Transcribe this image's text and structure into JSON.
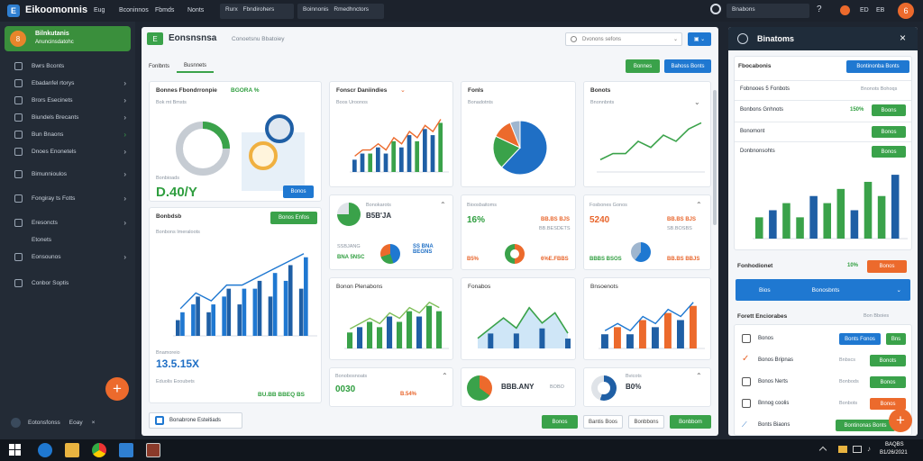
{
  "topbar": {
    "brand": "Eikoomonnis",
    "menu": [
      "Eug",
      "Bconinnos",
      "Fbmds",
      "Nonts"
    ],
    "tabs": [
      "Rurx",
      "Fbndirohers",
      "Boinnonis",
      "Rmedhnctors"
    ],
    "search_value": "Bnabons",
    "user_initial": "6"
  },
  "sidebar": {
    "header_title": "Bilnkutanis",
    "header_sub": "Anuncinsdatohc",
    "items": [
      {
        "label": "Bwrs Bconts"
      },
      {
        "label": "Ebadanfel rtorys"
      },
      {
        "label": "Brors Esecinets"
      },
      {
        "label": "Biundels Brecants"
      },
      {
        "label": "Bun Bnaons"
      },
      {
        "label": "Dnoes Enonetels"
      },
      {
        "label": "Bimunnioulos"
      },
      {
        "label": "Fongiray ts Fotts"
      },
      {
        "label": "Eresoncts"
      },
      {
        "label": "Etonets"
      },
      {
        "label": "Eonsounos"
      },
      {
        "label": "Conbor Soptis"
      }
    ],
    "footer_name": "Eotonsfonss",
    "footer_sub": "Eoay"
  },
  "main": {
    "title": "Eonsnsnsa",
    "subtitle": "Conoetsnu Bbatoiey",
    "search_placeholder": "Dvonons sefons",
    "tabs": [
      "Fonlbnts",
      "Busnnets"
    ],
    "btn1": "Bonnes",
    "btn2": "Bahoss Bonts",
    "card1": {
      "title": "Bonnes Fbondrronpie",
      "badge": "BGORA %",
      "sub": "Bok mt Bmsts",
      "big": "D.40/Y",
      "small": "Bonbioads",
      "btn": "Bonos"
    },
    "card2": {
      "title": "Fonscr Daniindies",
      "sub": "Boos Uroonos"
    },
    "card3": {
      "title": "Fonls",
      "sub": "Bonadotnts"
    },
    "card4": {
      "title": "Bonots",
      "sub": "Bnonnbnts"
    },
    "card5": {
      "title": "Bonbdsb",
      "btn": "Bonos Enfos",
      "sub": "Bonbons Imeraloots",
      "num_label": "Bnamoreio",
      "big": "13.5.15X",
      "foot1": "Eduolis Eooubets",
      "foot2": "BU.BB BBEQ BS"
    },
    "kpi1": {
      "value": "B5B'JA",
      "line1": "Bonokarots",
      "line2": "SSBJANG",
      "line3": "BNA 5NSC",
      "line4": "SS BNA BEGNS"
    },
    "kpi2": {
      "title": "Bioosbaitoms",
      "value": "16%",
      "right": "BB.BS BJS",
      "r2": "BB.BESDETS",
      "l3": "B5%",
      "r3": "6%E.FBBS"
    },
    "kpi3": {
      "title": "Fosbones Gonos",
      "value": "5240",
      "right": "BB.BS BJS",
      "r2": "SB.BOSBS",
      "l3": "BBBS BSOS",
      "r3": "BB.BS BBJS"
    },
    "card9": {
      "title": "Bonon Plenabons"
    },
    "card10": {
      "title": "Fonabos"
    },
    "card11": {
      "title": "Bnsoenots"
    },
    "card12": {
      "title": "Bonobosnoats",
      "value": "0030",
      "pct": "B.54%"
    },
    "card13": {
      "value": "BBB.ANY",
      "right": "BOBO"
    },
    "card14": {
      "title": "Bvicots",
      "value": "B0%"
    },
    "bottom": {
      "status": "Bonabrone Esteitiads",
      "btn1": "Bonos",
      "btn2": "Bantis Boos",
      "btn3": "Bonbbons",
      "btn4": "Bonbbom"
    }
  },
  "rpanel": {
    "title": "Binatoms",
    "section1": "Fbocabonis",
    "s1btn": "Bontinonba Bonts",
    "rows": [
      {
        "label": "Fobnooes 5 Fonbots",
        "value": "Bnonots Bohoqs"
      },
      {
        "label": "Bonbons Gnhnots",
        "value": "150%",
        "btn": "Boons"
      },
      {
        "label": "Bonomont",
        "btn": "Bonos"
      },
      {
        "label": "Donbnonsohts",
        "btn": "Bonos"
      }
    ],
    "section2": "Fonhodionet",
    "s2pct": "10%",
    "s2btn": "Bonos",
    "select_label": "Bios",
    "select_value": "Bonosbnts",
    "section3": "Forett Enciorabes",
    "s3sub": "Bon Bboies",
    "list": [
      {
        "label": "Bonos",
        "btn": "Bonts Fonos",
        "btn2": "Bns"
      },
      {
        "label": "Bonos Bripnas",
        "value": "Bnbscs",
        "btn": "Bonots"
      },
      {
        "label": "Bonos Nerts",
        "value": "Bonbods",
        "btn": "Bonos"
      },
      {
        "label": "Bnnog coolis",
        "value": "Bonbots",
        "btn": "Bonos"
      },
      {
        "label": "Bonts Biaons",
        "btn": "Bontinonas Bonts"
      }
    ]
  },
  "taskbar": {
    "time": "BAQBS",
    "date": "B1/26/2021"
  },
  "chart_data": [
    {
      "type": "bar",
      "title": "Fonscr Daniindies",
      "series": [
        {
          "values": [
            2,
            3,
            3,
            4,
            3,
            5,
            4,
            6,
            5,
            7,
            6,
            8
          ]
        }
      ]
    },
    {
      "type": "pie",
      "title": "Fonls",
      "values": [
        62,
        20,
        12,
        6
      ]
    },
    {
      "type": "line",
      "title": "Bonots",
      "series": [
        {
          "values": [
            2,
            3,
            3,
            5,
            4,
            6,
            5,
            7,
            8
          ]
        }
      ]
    },
    {
      "type": "bar",
      "title": "Bonbdsb",
      "series": [
        {
          "values": [
            2,
            4,
            3,
            5,
            4,
            6,
            5,
            7,
            6
          ]
        },
        {
          "values": [
            3,
            5,
            4,
            6,
            6,
            7,
            8,
            9,
            10
          ]
        }
      ]
    },
    {
      "type": "bar",
      "title": "Bonon Plenabons",
      "series": [
        {
          "values": [
            3,
            4,
            5,
            4,
            6,
            5,
            7,
            6,
            8,
            7
          ]
        }
      ]
    },
    {
      "type": "area",
      "title": "Fonabos",
      "series": [
        {
          "values": [
            2,
            4,
            6,
            4,
            8,
            5,
            7,
            3
          ]
        }
      ]
    },
    {
      "type": "bar",
      "title": "Bnsoenots",
      "series": [
        {
          "values": [
            2,
            3,
            2,
            4,
            3,
            5,
            4,
            6
          ]
        }
      ]
    },
    {
      "type": "bar",
      "title": "Binatoms",
      "series": [
        {
          "values": [
            3,
            4,
            5,
            3,
            6,
            5,
            7,
            4,
            8,
            6,
            9
          ]
        }
      ]
    }
  ]
}
